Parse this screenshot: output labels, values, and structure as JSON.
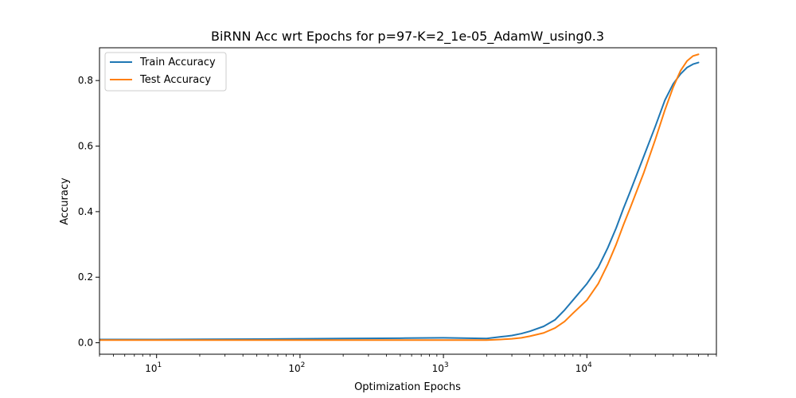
{
  "chart_data": {
    "type": "line",
    "title": "BiRNN Acc wrt Epochs for p=97-K=2_1e-05_AdamW_using0.3",
    "xlabel": "Optimization Epochs",
    "ylabel": "Accuracy",
    "xscale": "log",
    "xlim": [
      4,
      80000
    ],
    "ylim": [
      -0.035,
      0.9
    ],
    "xticks": [
      {
        "value": 10,
        "label": "10",
        "exp": "1"
      },
      {
        "value": 100,
        "label": "10",
        "exp": "2"
      },
      {
        "value": 1000,
        "label": "10",
        "exp": "3"
      },
      {
        "value": 10000,
        "label": "10",
        "exp": "4"
      }
    ],
    "yticks": [
      {
        "value": 0.0,
        "label": "0.0"
      },
      {
        "value": 0.2,
        "label": "0.2"
      },
      {
        "value": 0.4,
        "label": "0.4"
      },
      {
        "value": 0.6,
        "label": "0.6"
      },
      {
        "value": 0.8,
        "label": "0.8"
      }
    ],
    "grid": false,
    "legend_position": "top-left",
    "series": [
      {
        "name": "Train Accuracy",
        "color": "#1f77b4",
        "x": [
          4,
          10,
          50,
          100,
          200,
          500,
          1000,
          1500,
          2000,
          2500,
          3000,
          3500,
          4000,
          5000,
          6000,
          7000,
          8000,
          10000,
          12000,
          14000,
          16000,
          18000,
          20000,
          25000,
          30000,
          35000,
          40000,
          45000,
          50000,
          55000,
          60000
        ],
        "y": [
          0.01,
          0.01,
          0.011,
          0.012,
          0.013,
          0.014,
          0.015,
          0.014,
          0.013,
          0.018,
          0.022,
          0.028,
          0.035,
          0.05,
          0.07,
          0.1,
          0.13,
          0.18,
          0.23,
          0.29,
          0.35,
          0.41,
          0.46,
          0.57,
          0.66,
          0.74,
          0.79,
          0.82,
          0.84,
          0.85,
          0.855
        ]
      },
      {
        "name": "Test Accuracy",
        "color": "#ff7f0e",
        "x": [
          4,
          10,
          50,
          100,
          200,
          500,
          1000,
          1500,
          2000,
          2500,
          3000,
          3500,
          4000,
          5000,
          6000,
          7000,
          8000,
          10000,
          12000,
          14000,
          16000,
          18000,
          20000,
          25000,
          30000,
          35000,
          40000,
          45000,
          50000,
          55000,
          60000
        ],
        "y": [
          0.008,
          0.008,
          0.008,
          0.008,
          0.008,
          0.008,
          0.008,
          0.008,
          0.008,
          0.01,
          0.012,
          0.015,
          0.02,
          0.03,
          0.045,
          0.065,
          0.09,
          0.13,
          0.18,
          0.24,
          0.3,
          0.36,
          0.41,
          0.52,
          0.62,
          0.71,
          0.78,
          0.83,
          0.86,
          0.875,
          0.88
        ]
      }
    ]
  }
}
